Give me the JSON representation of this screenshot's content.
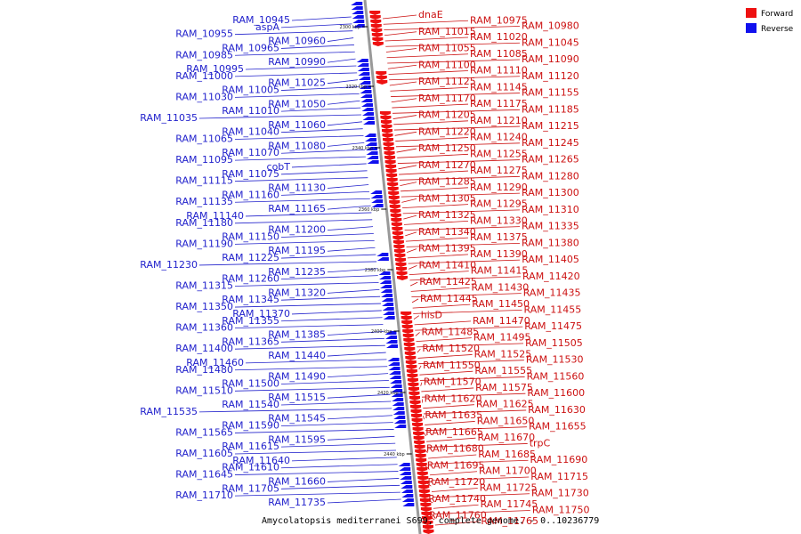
{
  "caption": "Amycolatopsis mediterranei S699, complete genome. - 0..10236779",
  "legend": [
    {
      "label": "Forward",
      "color": "#ee1111"
    },
    {
      "label": "Reverse",
      "color": "#1111ee"
    }
  ],
  "ticks": [
    "2300 kbp",
    "2320 kbp",
    "2340 kbp",
    "2360 kbp",
    "2380 kbp",
    "2400 kbp",
    "2420 kbp",
    "2440 kbp"
  ],
  "reverse_labels": [
    "RAM_10945",
    "aspA",
    "RAM_10955",
    "RAM_10960",
    "RAM_10965",
    "RAM_10985",
    "RAM_10990",
    "RAM_10995",
    "RAM_11000",
    "RAM_11025",
    "RAM_11005",
    "RAM_11030",
    "RAM_11050",
    "RAM_11010",
    "RAM_11035",
    "RAM_11060",
    "RAM_11040",
    "RAM_11065",
    "RAM_11080",
    "RAM_11070",
    "RAM_11095",
    "cobT",
    "RAM_11075",
    "RAM_11115",
    "RAM_11130",
    "RAM_11160",
    "RAM_11135",
    "RAM_11165",
    "RAM_11140",
    "RAM_11180",
    "RAM_11200",
    "RAM_11150",
    "RAM_11190",
    "RAM_11195",
    "RAM_11225",
    "RAM_11230",
    "RAM_11235",
    "RAM_11260",
    "RAM_11315",
    "RAM_11320",
    "RAM_11345",
    "RAM_11350",
    "RAM_11370",
    "RAM_11355",
    "RAM_11360",
    "RAM_11385",
    "RAM_11365",
    "RAM_11400",
    "RAM_11440",
    "RAM_11460",
    "RAM_11480",
    "RAM_11490",
    "RAM_11500",
    "RAM_11510",
    "RAM_11515",
    "RAM_11540",
    "RAM_11535",
    "RAM_11545",
    "RAM_11590",
    "RAM_11565",
    "RAM_11595",
    "RAM_11615",
    "RAM_11605",
    "RAM_11640",
    "RAM_11610",
    "RAM_11645",
    "RAM_11660",
    "RAM_11705",
    "RAM_11710",
    "RAM_11735"
  ],
  "forward_labels": [
    "dnaE",
    "RAM_10975",
    "RAM_10980",
    "RAM_11015",
    "RAM_11020",
    "RAM_11045",
    "RAM_11055",
    "RAM_11085",
    "RAM_11090",
    "RAM_11100",
    "RAM_11110",
    "RAM_11120",
    "RAM_11125",
    "RAM_11145",
    "RAM_11155",
    "RAM_11170",
    "RAM_11175",
    "RAM_11185",
    "RAM_11205",
    "RAM_11210",
    "RAM_11215",
    "RAM_11220",
    "RAM_11240",
    "RAM_11245",
    "RAM_11250",
    "RAM_11255",
    "RAM_11265",
    "RAM_11270",
    "RAM_11275",
    "RAM_11280",
    "RAM_11285",
    "RAM_11290",
    "RAM_11300",
    "RAM_11305",
    "RAM_11295",
    "RAM_11310",
    "RAM_11325",
    "RAM_11330",
    "RAM_11335",
    "RAM_11340",
    "RAM_11375",
    "RAM_11380",
    "RAM_11395",
    "RAM_11390",
    "RAM_11405",
    "RAM_11410",
    "RAM_11415",
    "RAM_11420",
    "RAM_11425",
    "RAM_11430",
    "RAM_11435",
    "RAM_11445",
    "RAM_11450",
    "RAM_11455",
    "hisD",
    "RAM_11470",
    "RAM_11475",
    "RAM_11485",
    "RAM_11495",
    "RAM_11505",
    "RAM_11520",
    "RAM_11525",
    "RAM_11530",
    "RAM_11550",
    "RAM_11555",
    "RAM_11560",
    "RAM_11570",
    "RAM_11575",
    "RAM_11600",
    "RAM_11620",
    "RAM_11625",
    "RAM_11630",
    "RAM_11635",
    "RAM_11650",
    "RAM_11655",
    "RAM_11665",
    "RAM_11670",
    "trpC",
    "RAM_11680",
    "RAM_11685",
    "RAM_11690",
    "RAM_11695",
    "RAM_11700",
    "RAM_11715",
    "RAM_11720",
    "RAM_11725",
    "RAM_11730",
    "RAM_11740",
    "RAM_11745",
    "RAM_11750",
    "RAM_11760",
    "RAM_11765"
  ]
}
